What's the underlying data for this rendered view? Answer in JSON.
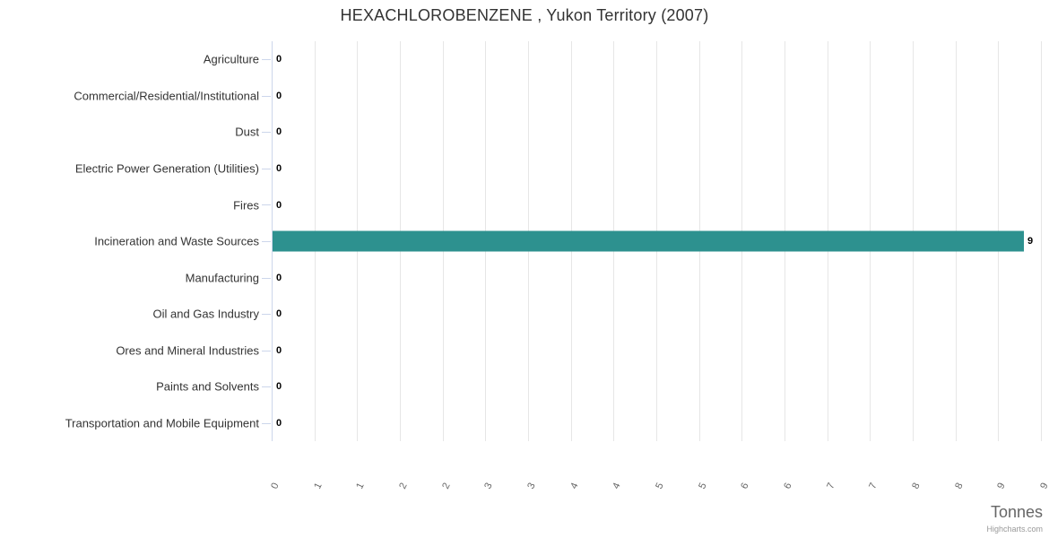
{
  "chart_data": {
    "type": "bar",
    "title": "HEXACHLOROBENZENE , Yukon Territory (2007)",
    "categories": [
      "Agriculture",
      "Commercial/Residential/Institutional",
      "Dust",
      "Electric Power Generation (Utilities)",
      "Fires",
      "Incineration and Waste Sources",
      "Manufacturing",
      "Oil and Gas Industry",
      "Ores and Mineral Industries",
      "Paints and Solvents",
      "Transportation and Mobile Equipment"
    ],
    "values": [
      0,
      0,
      0,
      0,
      0,
      9,
      0,
      0,
      0,
      0,
      0
    ],
    "data_labels": [
      "0",
      "0",
      "0",
      "0",
      "0",
      "9",
      "0",
      "0",
      "0",
      "0",
      "0"
    ],
    "rendered_values": [
      0,
      0,
      0,
      0,
      0,
      8.79,
      0,
      0,
      0,
      0,
      0
    ],
    "xlabel": "Tonnes",
    "ylabel": "",
    "xlim": [
      0,
      9
    ],
    "tick_interval": 0.5,
    "tick_labels": [
      "0",
      "1",
      "1",
      "2",
      "2",
      "3",
      "3",
      "4",
      "4",
      "5",
      "5",
      "6",
      "6",
      "7",
      "7",
      "8",
      "8",
      "9",
      "9"
    ],
    "grid": true,
    "legend": false,
    "bar_color": "#2d918f",
    "label_rotation_deg": -65,
    "colors": {
      "title": "#333333",
      "category_label": "#333333",
      "axis_line": "#ccd6eb",
      "gridline": "#e6e6e6",
      "tick_label": "#666666",
      "axis_title": "#666666",
      "data_label": "#000000",
      "credits": "#999999"
    }
  },
  "credits": "Highcharts.com"
}
